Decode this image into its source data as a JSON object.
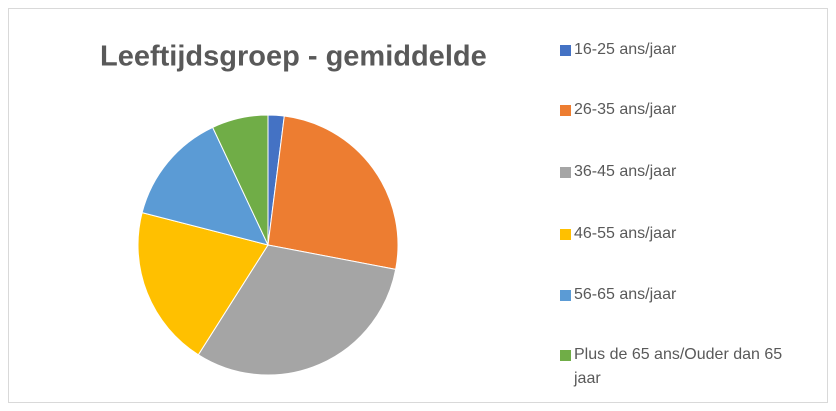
{
  "chart_data": {
    "type": "pie",
    "title": "Leeftijdsgroep - gemiddelde",
    "categories": [
      "16-25 ans/jaar",
      "26-35 ans/jaar",
      "36-45 ans/jaar",
      "46-55 ans/jaar",
      "56-65 ans/jaar",
      "Plus de 65 ans/Ouder dan 65 jaar"
    ],
    "values": [
      2,
      26,
      31,
      20,
      14,
      7
    ],
    "colors": [
      "#4472c4",
      "#ed7d31",
      "#a5a5a5",
      "#ffc000",
      "#5b9bd5",
      "#70ad47"
    ],
    "legend": "right"
  }
}
